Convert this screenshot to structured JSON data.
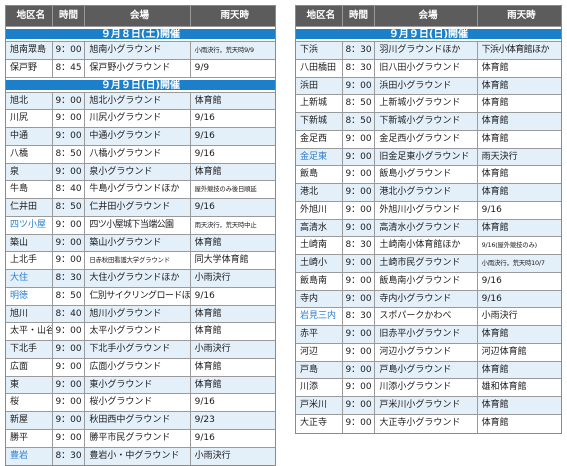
{
  "headers": [
    "地区名",
    "時間",
    "会場",
    "雨天時"
  ],
  "left": {
    "sections": [
      {
        "title": "９月８日(土)開催",
        "rows": [
          {
            "district": "旭南眾島",
            "time": "9：00",
            "venue": "旭南小グラウンド",
            "rain": "小雨決行，荒天時9/9",
            "rain_small": true
          },
          {
            "district": "保戸野",
            "time": "8：45",
            "venue": "保戸野小グラウンド",
            "rain": "9/9"
          }
        ]
      },
      {
        "title": "９月９日(日)開催",
        "rows": [
          {
            "district": "旭北",
            "time": "9：00",
            "venue": "旭北小グラウンド",
            "rain": "体育館"
          },
          {
            "district": "川尻",
            "time": "9：00",
            "venue": "川尻小グラウンド",
            "rain": "9/16"
          },
          {
            "district": "中通",
            "time": "9：00",
            "venue": "中通小グラウンド",
            "rain": "9/16"
          },
          {
            "district": "八橋",
            "time": "8：50",
            "venue": "八橋小グラウンド",
            "rain": "9/16"
          },
          {
            "district": "泉",
            "time": "9：00",
            "venue": "泉小グラウンド",
            "rain": "体育館"
          },
          {
            "district": "牛島",
            "time": "8：40",
            "venue": "牛島小グラウンドほか",
            "rain": "屋外競技のみ後日順延",
            "rain_small": true
          },
          {
            "district": "仁井田",
            "time": "8：50",
            "venue": "仁井田小グラウンド",
            "rain": "9/16"
          },
          {
            "district": "四ツ小屋",
            "district_blue": true,
            "time": "9：00",
            "venue": "四ツ小屋城下当端公園",
            "venue_tight": true,
            "rain": "雨天決行，荒天時中止",
            "rain_small": true
          },
          {
            "district": "築山",
            "time": "9：00",
            "venue": "築山小グラウンド",
            "rain": "体育館"
          },
          {
            "district": "上北手",
            "time": "9：00",
            "venue": "日赤秋田看護大学グラウンド",
            "venue_small": true,
            "rain": "同大学体育館"
          },
          {
            "district": "大住",
            "district_blue": true,
            "time": "8：30",
            "venue": "大住小グラウンドほか",
            "rain": "小雨決行"
          },
          {
            "district": "明徳",
            "district_blue": true,
            "time": "8：50",
            "venue": "仁別サイクリングロードほか",
            "venue_tight": true,
            "rain": "9/16"
          },
          {
            "district": "旭川",
            "time": "8：40",
            "venue": "旭川小グラウンド",
            "rain": "体育館"
          },
          {
            "district": "太平・山谷",
            "time": "9：00",
            "venue": "太平小グラウンド",
            "rain": "体育館"
          },
          {
            "district": "下北手",
            "time": "9：00",
            "venue": "下北手小グラウンド",
            "rain": "小雨決行"
          },
          {
            "district": "広面",
            "time": "9：00",
            "venue": "広面小グラウンド",
            "rain": "体育館"
          },
          {
            "district": "東",
            "time": "9：00",
            "venue": "東小グラウンド",
            "rain": "体育館"
          },
          {
            "district": "桜",
            "time": "9：00",
            "venue": "桜小グラウンド",
            "rain": "9/16"
          },
          {
            "district": "新屋",
            "time": "9：00",
            "venue": "秋田西中グラウンド",
            "rain": "9/23"
          },
          {
            "district": "勝平",
            "time": "9：00",
            "venue": "勝平市民グラウンド",
            "rain": "9/16"
          },
          {
            "district": "豊岩",
            "district_blue": true,
            "time": "8：30",
            "venue": "豊岩小・中グラウンド",
            "rain": "小雨決行"
          }
        ]
      }
    ]
  },
  "right": {
    "sections": [
      {
        "title": "９月９日(日)開催",
        "rows": [
          {
            "district": "下浜",
            "time": "8：30",
            "venue": "羽川グラウンドほか",
            "rain": "下浜小体育館ほか",
            "rain_tight": true
          },
          {
            "district": "八田橋田",
            "time": "8：30",
            "venue": "旧八田小グラウンド",
            "rain": "体育館"
          },
          {
            "district": "浜田",
            "time": "9：00",
            "venue": "浜田小グラウンド",
            "rain": "体育館"
          },
          {
            "district": "上新城",
            "time": "8：50",
            "venue": "上新城小グラウンド",
            "rain": "体育館"
          },
          {
            "district": "下新城",
            "time": "8：50",
            "venue": "下新城小グラウンド",
            "rain": "体育館"
          },
          {
            "district": "金足西",
            "time": "9：00",
            "venue": "金足西小グラウンド",
            "rain": "体育館"
          },
          {
            "district": "金足東",
            "district_blue": true,
            "time": "9：00",
            "venue": "旧金足東小グラウンド",
            "rain": "雨天決行"
          },
          {
            "district": "飯島",
            "time": "9：00",
            "venue": "飯島小グラウンド",
            "rain": "体育館"
          },
          {
            "district": "港北",
            "time": "9：00",
            "venue": "港北小グラウンド",
            "rain": "体育館"
          },
          {
            "district": "外旭川",
            "time": "9：00",
            "venue": "外旭川小グラウンド",
            "rain": "9/16"
          },
          {
            "district": "高清水",
            "time": "9：00",
            "venue": "高清水小グラウンド",
            "rain": "体育館"
          },
          {
            "district": "土崎南",
            "time": "8：30",
            "venue": "土崎南小体育館ほか",
            "rain": "9/16(屋外競技のみ)",
            "rain_small": true
          },
          {
            "district": "土崎小",
            "time": "9：00",
            "venue": "土崎市民グラウンド",
            "rain": "小雨決行，荒天時10/7",
            "rain_small": true
          },
          {
            "district": "飯島南",
            "time": "9：00",
            "venue": "飯島南小グラウンド",
            "rain": "9/16"
          },
          {
            "district": "寺内",
            "time": "9：00",
            "venue": "寺内小グラウンド",
            "rain": "9/16"
          },
          {
            "district": "岩見三内",
            "district_blue": true,
            "time": "8：30",
            "venue": "スポパークかわべ",
            "rain": "小雨決行"
          },
          {
            "district": "赤平",
            "time": "9：00",
            "venue": "旧赤平小グラウンド",
            "rain": "体育館"
          },
          {
            "district": "河辺",
            "time": "9：00",
            "venue": "河辺小グラウンド",
            "rain": "河辺体育館"
          },
          {
            "district": "戸島",
            "time": "9：00",
            "venue": "戸島小グラウンド",
            "rain": "体育館"
          },
          {
            "district": "川添",
            "time": "9：00",
            "venue": "川添小グラウンド",
            "rain": "雄和体育館"
          },
          {
            "district": "戸米川",
            "time": "9：00",
            "venue": "戸米川小グラウンド",
            "rain": "体育館"
          },
          {
            "district": "大正寺",
            "time": "9：00",
            "venue": "大正寺小グラウンド",
            "rain": "体育館"
          }
        ]
      }
    ]
  },
  "colors": {
    "header_bg": "#5c5c5c",
    "band": "#1b7fc9",
    "alt_row": "#e3eff9",
    "blue_text": "#2a7fd0"
  }
}
